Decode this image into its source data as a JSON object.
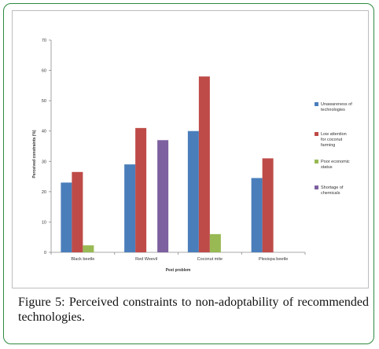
{
  "figure": {
    "label": "Figure 5:",
    "caption": "Perceived constraints to non-adoptability of recommended technologies."
  },
  "chart_data": {
    "type": "bar",
    "title": "",
    "xlabel": "Pest problem",
    "ylabel": "Perceived constraints (%)",
    "ylim": [
      0,
      70
    ],
    "yticks": [
      0,
      10,
      20,
      30,
      40,
      50,
      60,
      70
    ],
    "grid": false,
    "legend_position": "right",
    "categories": [
      "Black beetle",
      "Red Weevil",
      "Coconut mite",
      "Plesispa beetle"
    ],
    "series": [
      {
        "name": "Unawareness of technologies",
        "color": "#4a7ebb",
        "values": [
          23,
          29,
          40,
          24.5
        ]
      },
      {
        "name": "Low attention for coconut farming",
        "color": "#be4b48",
        "values": [
          26.5,
          41,
          58,
          31
        ]
      },
      {
        "name": "Poor economic status",
        "color": "#98b954",
        "values": [
          2.3,
          0,
          6,
          0
        ]
      },
      {
        "name": "Shortage of chemicals",
        "color": "#7d60a0",
        "values": [
          0,
          37,
          0,
          0
        ]
      }
    ]
  }
}
